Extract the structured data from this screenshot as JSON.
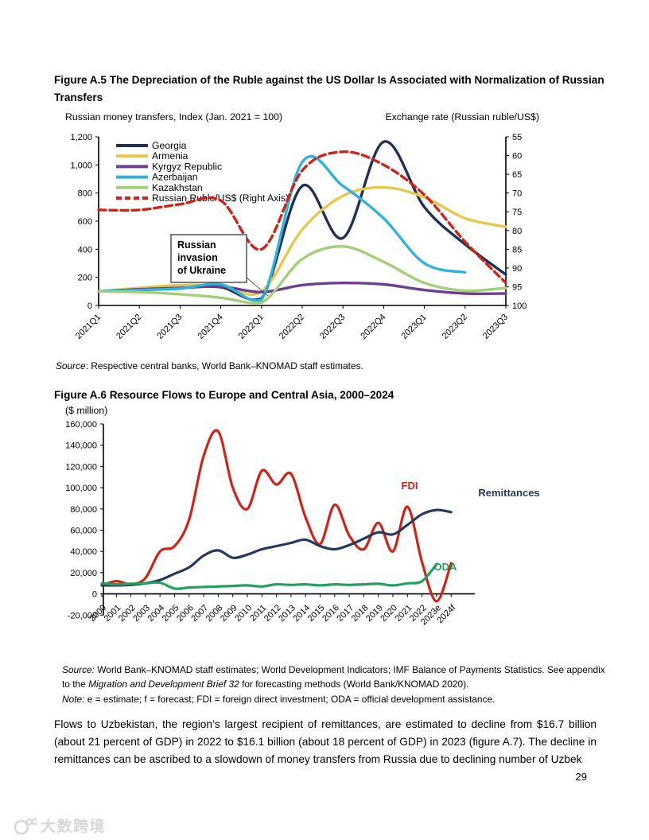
{
  "figure_a5": {
    "title": "Figure A.5 The Depreciation of the Ruble against the US Dollar Is Associated with Normalization of Russian Transfers",
    "left_axis_title": "Russian money transfers, Index (Jan. 2021 = 100)",
    "right_axis_title": "Exchange rate (Russian ruble/US$)",
    "source_label": "Source",
    "source_text": ": Respective central banks, World Bank–KNOMAD staff estimates."
  },
  "figure_a6": {
    "title": "Figure A.6 Resource Flows to Europe and Central Asia, 2000–2024",
    "unit_label": "($ million)",
    "source_label": "Source:",
    "source_text1": " World Bank–KNOMAD staff estimates; World Development Indicators; IMF Balance of Payments Statistics. See appendix to the ",
    "source_italic": "Migration and Development Brief 32",
    "source_text2": " for forecasting methods (World Bank/KNOMAD 2020).",
    "note_label": "Note:",
    "note_text": " e = estimate; f = forecast; FDI = foreign direct investment; ODA = official development assistance."
  },
  "body_paragraph": "Flows to Uzbekistan, the region’s largest recipient of remittances, are estimated to decline from $16.7 billion (about 21 percent of GDP) in 2022 to $16.1 billion (about 18 percent of GDP) in 2023 (figure A.7). The decline in remittances can be ascribed to a slowdown of money transfers from Russia due to declining number of Uzbek",
  "page_number": "29",
  "watermark_text": "大数跨境",
  "chart_data": [
    {
      "type": "line",
      "title": "Figure A.5 The Depreciation of the Ruble against the US Dollar Is Associated with Normalization of Russian Transfers",
      "categories": [
        "2021Q1",
        "2021Q2",
        "2021Q3",
        "2021Q4",
        "2022Q1",
        "2022Q2",
        "2022Q3",
        "2022Q4",
        "2023Q1",
        "2023Q2",
        "2023Q3"
      ],
      "left_axis": {
        "label": "Russian money transfers, Index (Jan. 2021 = 100)",
        "min": 0,
        "max": 1200,
        "ticks": [
          0,
          200,
          400,
          600,
          800,
          1000,
          1200
        ]
      },
      "right_axis": {
        "label": "Exchange rate (Russian ruble/US$)",
        "min": 55,
        "max": 100,
        "inverted": true,
        "ticks": [
          55,
          60,
          65,
          70,
          75,
          80,
          85,
          90,
          95,
          100
        ]
      },
      "annotation_lines": [
        "Russian",
        "invasion",
        "of Ukraine"
      ],
      "legend_position": "top-left-inside",
      "series": [
        {
          "name": "Georgia",
          "color": "#1f3158",
          "axis": "left",
          "dashed": false,
          "values": [
            100,
            115,
            125,
            130,
            50,
            850,
            480,
            1165,
            700,
            435,
            220
          ]
        },
        {
          "name": "Armenia",
          "color": "#e6c84b",
          "axis": "left",
          "dashed": false,
          "values": [
            100,
            125,
            145,
            140,
            100,
            540,
            780,
            840,
            770,
            620,
            560
          ]
        },
        {
          "name": "Kyrgyz Republic",
          "color": "#6e3f91",
          "axis": "left",
          "dashed": false,
          "values": [
            100,
            115,
            125,
            135,
            95,
            145,
            160,
            150,
            110,
            85,
            85
          ]
        },
        {
          "name": "Azerbaijan",
          "color": "#30b2dc",
          "axis": "left",
          "dashed": false,
          "values": [
            100,
            110,
            120,
            150,
            40,
            1020,
            850,
            620,
            300,
            235,
            null
          ]
        },
        {
          "name": "Kazakhstan",
          "color": "#a3cf78",
          "axis": "left",
          "dashed": false,
          "values": [
            100,
            95,
            80,
            55,
            20,
            330,
            420,
            310,
            160,
            105,
            125
          ]
        },
        {
          "name": "Russian Ruble/US$ (Right Axis)",
          "color": "#cf2318",
          "axis": "right",
          "dashed": true,
          "values": [
            74.5,
            74.5,
            73,
            72,
            85,
            64,
            59,
            62.5,
            70.5,
            83,
            94
          ]
        }
      ]
    },
    {
      "type": "line",
      "title": "Figure A.6 Resource Flows to Europe and Central Asia, 2000–2024",
      "ylabel": "($ million)",
      "ylim": [
        -20000,
        160000
      ],
      "yticks": [
        -20000,
        0,
        20000,
        40000,
        60000,
        80000,
        100000,
        120000,
        140000,
        160000
      ],
      "categories": [
        "2000",
        "2001",
        "2002",
        "2003",
        "2004",
        "2005",
        "2006",
        "2007",
        "2008",
        "2009",
        "2010",
        "2011",
        "2012",
        "2013",
        "2014",
        "2015",
        "2016",
        "2017",
        "2018",
        "2019",
        "2020",
        "2021",
        "2022",
        "2023e",
        "2024f"
      ],
      "series": [
        {
          "name": "FDI",
          "color": "#cf2318",
          "values": [
            8000,
            12000,
            9000,
            15000,
            40000,
            45000,
            70000,
            130000,
            153000,
            100000,
            80000,
            116000,
            103000,
            113000,
            72000,
            47000,
            84000,
            55000,
            42000,
            67000,
            40000,
            82000,
            30000,
            -7000,
            29000
          ]
        },
        {
          "name": "Remittances",
          "color": "#24395e",
          "values": [
            8000,
            8000,
            8500,
            10000,
            13000,
            19000,
            25000,
            36000,
            41000,
            34000,
            37000,
            42000,
            45000,
            48000,
            51000,
            45000,
            42000,
            46000,
            52000,
            58000,
            56000,
            65000,
            75000,
            79000,
            77000
          ]
        },
        {
          "name": "ODA",
          "color": "#23a05f",
          "values": [
            10000,
            9000,
            9500,
            10000,
            10500,
            5000,
            6000,
            6500,
            7000,
            7500,
            8000,
            7000,
            9000,
            8500,
            9000,
            8000,
            9000,
            8500,
            9000,
            9500,
            8000,
            10000,
            12000,
            28000,
            null
          ]
        }
      ]
    }
  ]
}
